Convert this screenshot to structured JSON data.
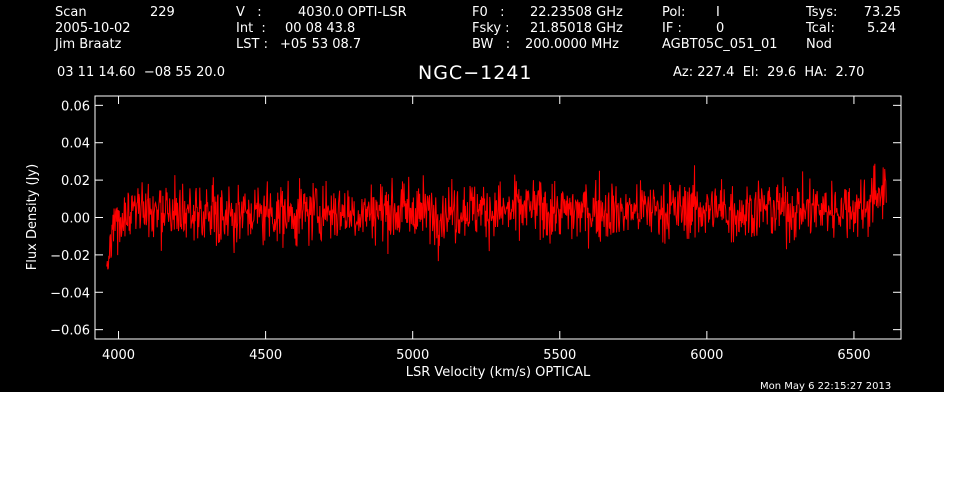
{
  "header": {
    "scan_label": "Scan",
    "scan_value": "229",
    "date": "2005-10-02",
    "observer": "Jim Braatz",
    "v_label": "V   :",
    "v_value": "4030.0 OPTI-LSR",
    "int_label": "Int  :",
    "int_value": "00 08 43.8",
    "lst_label": "LST :",
    "lst_value": "+05 53 08.7",
    "f0_label": "F0   :",
    "f0_value": "22.23508 GHz",
    "fsky_label": "Fsky :",
    "fsky_value": "21.85018 GHz",
    "bw_label": "BW   :",
    "bw_value": "200.0000 MHz",
    "pol_label": "Pol:",
    "pol_value": "I",
    "if_label": "IF :",
    "if_value": "0",
    "project": "AGBT05C_051_01",
    "tsys_label": "Tsys:",
    "tsys_value": "73.25",
    "tcal_label": "Tcal:",
    "tcal_value": "5.24",
    "mode": "Nod",
    "coords": "03 11 14.60  −08 55 20.0",
    "source": "NGC−1241",
    "az_el_ha": "Az: 227.4  El:  29.6  HA:  2.70",
    "timestamp": "Mon May  6 22:15:27 2013"
  },
  "colors": {
    "background": "#000000",
    "axes": "#ffffff",
    "trace": "#ff0000"
  },
  "chart_data": {
    "type": "line",
    "title": "NGC−1241",
    "xlabel": "LSR Velocity (km/s) OPTICAL",
    "ylabel": "Flux Density (Jy)",
    "xlim": [
      3920,
      6660
    ],
    "ylim": [
      -0.065,
      0.065
    ],
    "xticks": [
      4000,
      4500,
      5000,
      5500,
      6000,
      6500
    ],
    "xtick_labels": [
      "4000",
      "4500",
      "5000",
      "5500",
      "6000",
      "6500"
    ],
    "yticks": [
      -0.06,
      -0.04,
      -0.02,
      0.0,
      0.02,
      0.04,
      0.06
    ],
    "ytick_labels": [
      "−0.06",
      "−0.04",
      "−0.02",
      "0.00",
      "0.02",
      "0.04",
      "0.06"
    ],
    "series": [
      {
        "x": [
          3960,
          3975,
          3990,
          4010,
          4030,
          4060,
          4100,
          4150,
          4200,
          4250,
          4300,
          4350,
          4400,
          4450,
          4500,
          4550,
          4600,
          4650,
          4700,
          4750,
          4800,
          4850,
          4900,
          4950,
          5000,
          5050,
          5100,
          5150,
          5200,
          5250,
          5300,
          5350,
          5400,
          5450,
          5500,
          5550,
          5600,
          5650,
          5700,
          5750,
          5800,
          5850,
          5900,
          5950,
          6000,
          6050,
          6100,
          6150,
          6200,
          6250,
          6300,
          6350,
          6400,
          6450,
          6500,
          6540,
          6570,
          6590,
          6610
        ],
        "y": [
          -0.025,
          -0.012,
          -0.005,
          0.0,
          0.002,
          0.004,
          0.003,
          0.002,
          0.001,
          0.002,
          0.003,
          0.002,
          0.001,
          0.002,
          0.003,
          0.002,
          0.002,
          0.003,
          0.004,
          0.003,
          0.002,
          0.003,
          0.004,
          0.003,
          0.004,
          0.003,
          0.002,
          0.004,
          0.005,
          0.004,
          0.003,
          0.004,
          0.005,
          0.004,
          0.003,
          0.003,
          0.004,
          0.004,
          0.003,
          0.004,
          0.005,
          0.004,
          0.004,
          0.005,
          0.004,
          0.004,
          0.003,
          0.004,
          0.005,
          0.004,
          0.004,
          0.005,
          0.004,
          0.005,
          0.005,
          0.007,
          0.01,
          0.014,
          0.02
        ]
      }
    ],
    "noise_rms": 0.008,
    "grid": false
  }
}
